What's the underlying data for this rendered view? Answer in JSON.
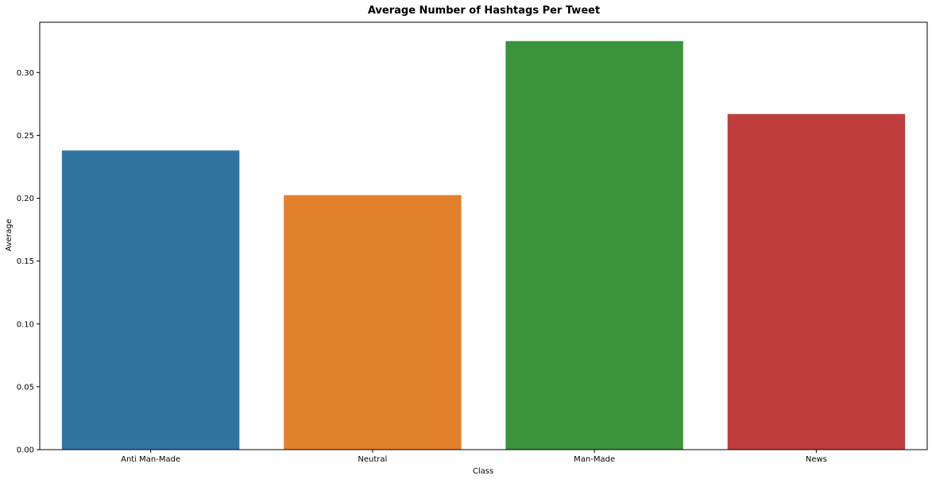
{
  "chart_data": {
    "type": "bar",
    "title": "Average Number of Hashtags Per Tweet",
    "xlabel": "Class",
    "ylabel": "Average",
    "categories": [
      "Anti Man-Made",
      "Neutral",
      "Man-Made",
      "News"
    ],
    "values": [
      0.238,
      0.2025,
      0.325,
      0.267
    ],
    "colors": [
      "#3274a1",
      "#e1812c",
      "#3a923a",
      "#c03d3e"
    ],
    "ylim": [
      0,
      0.34
    ],
    "yticks": [
      0.0,
      0.05,
      0.1,
      0.15,
      0.2,
      0.25,
      0.3
    ],
    "ytick_labels": [
      "0.00",
      "0.05",
      "0.10",
      "0.15",
      "0.20",
      "0.25",
      "0.30"
    ],
    "grid": false,
    "legend": "none"
  }
}
